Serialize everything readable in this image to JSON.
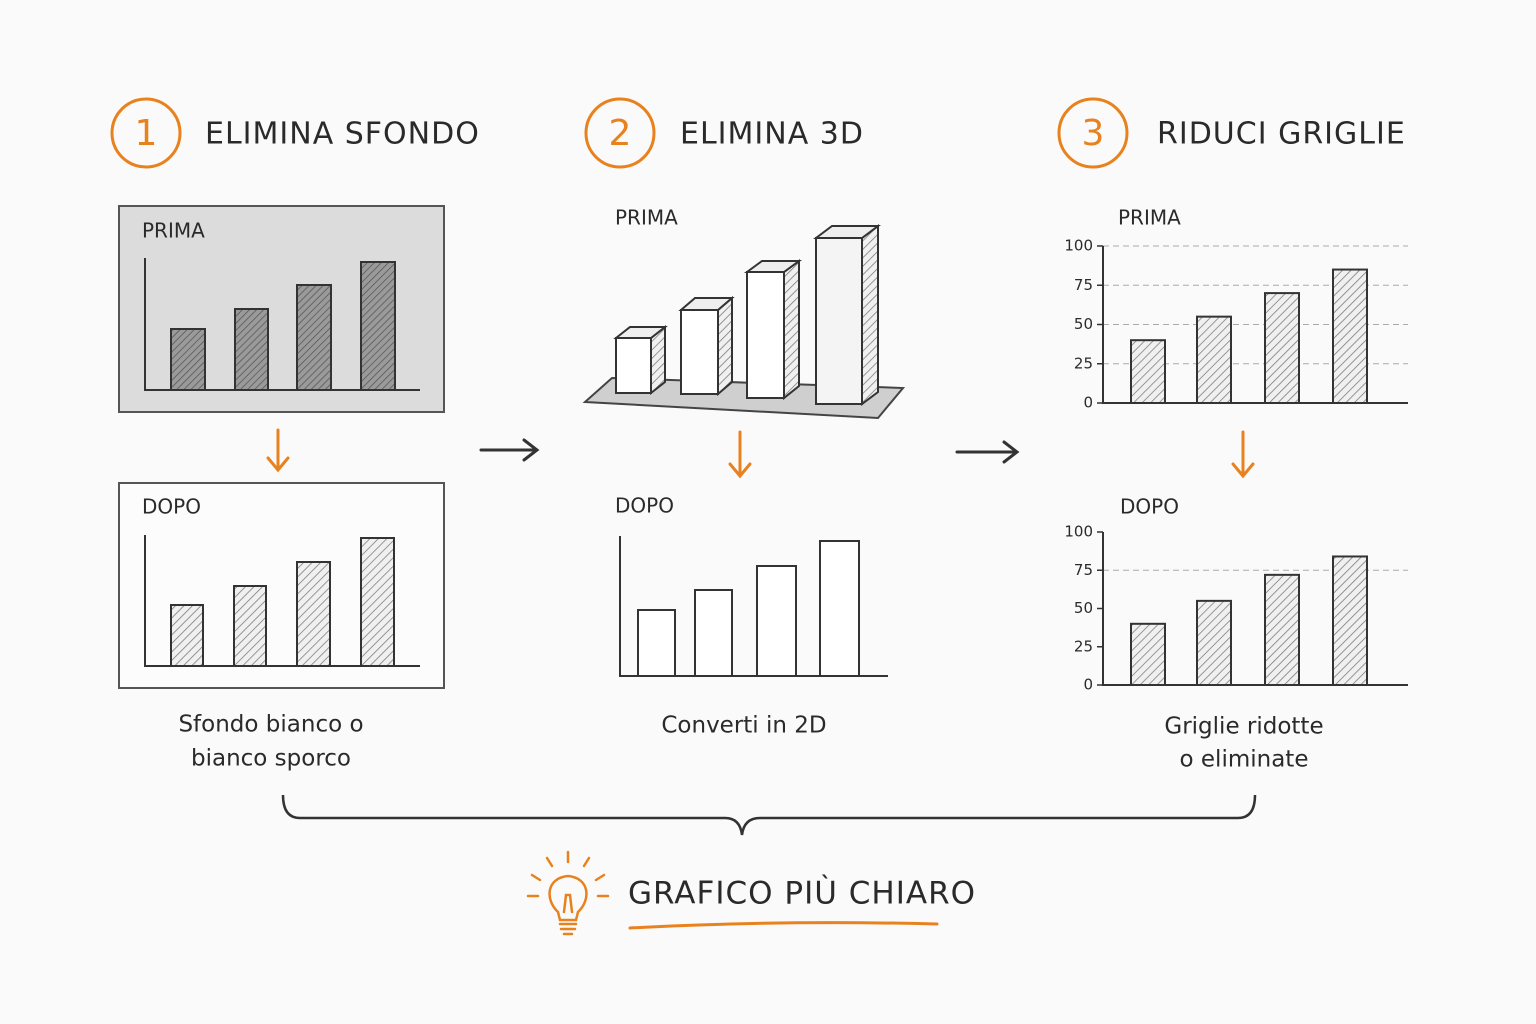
{
  "steps": [
    {
      "number": "1",
      "title": "ELIMINA SFONDO",
      "before_label": "PRIMA",
      "after_label": "DOPO",
      "caption": [
        "Sfondo bianco o",
        "bianco sporco"
      ]
    },
    {
      "number": "2",
      "title": "ELIMINA 3D",
      "before_label": "PRIMA",
      "after_label": "DOPO",
      "caption": [
        "Converti in 2D"
      ]
    },
    {
      "number": "3",
      "title": "RIDUCI GRIGLIE",
      "before_label": "PRIMA",
      "after_label": "DOPO",
      "caption": [
        "Griglie ridotte",
        "o eliminate"
      ],
      "before_chart": {
        "type": "bar",
        "values": [
          40,
          55,
          70,
          85
        ],
        "ylim": [
          0,
          100
        ],
        "yticks": [
          0,
          25,
          50,
          75,
          100
        ],
        "grid": [
          0,
          25,
          50,
          75,
          100
        ],
        "color": "#e0e0e0"
      },
      "after_chart": {
        "type": "bar",
        "values": [
          40,
          55,
          72,
          84
        ],
        "ylim": [
          0,
          100
        ],
        "yticks": [
          0,
          25,
          50,
          75,
          100
        ],
        "grid": [
          75
        ],
        "color": "#e0e0e0"
      }
    }
  ],
  "result": "GRAFICO PIÙ CHIARO"
}
